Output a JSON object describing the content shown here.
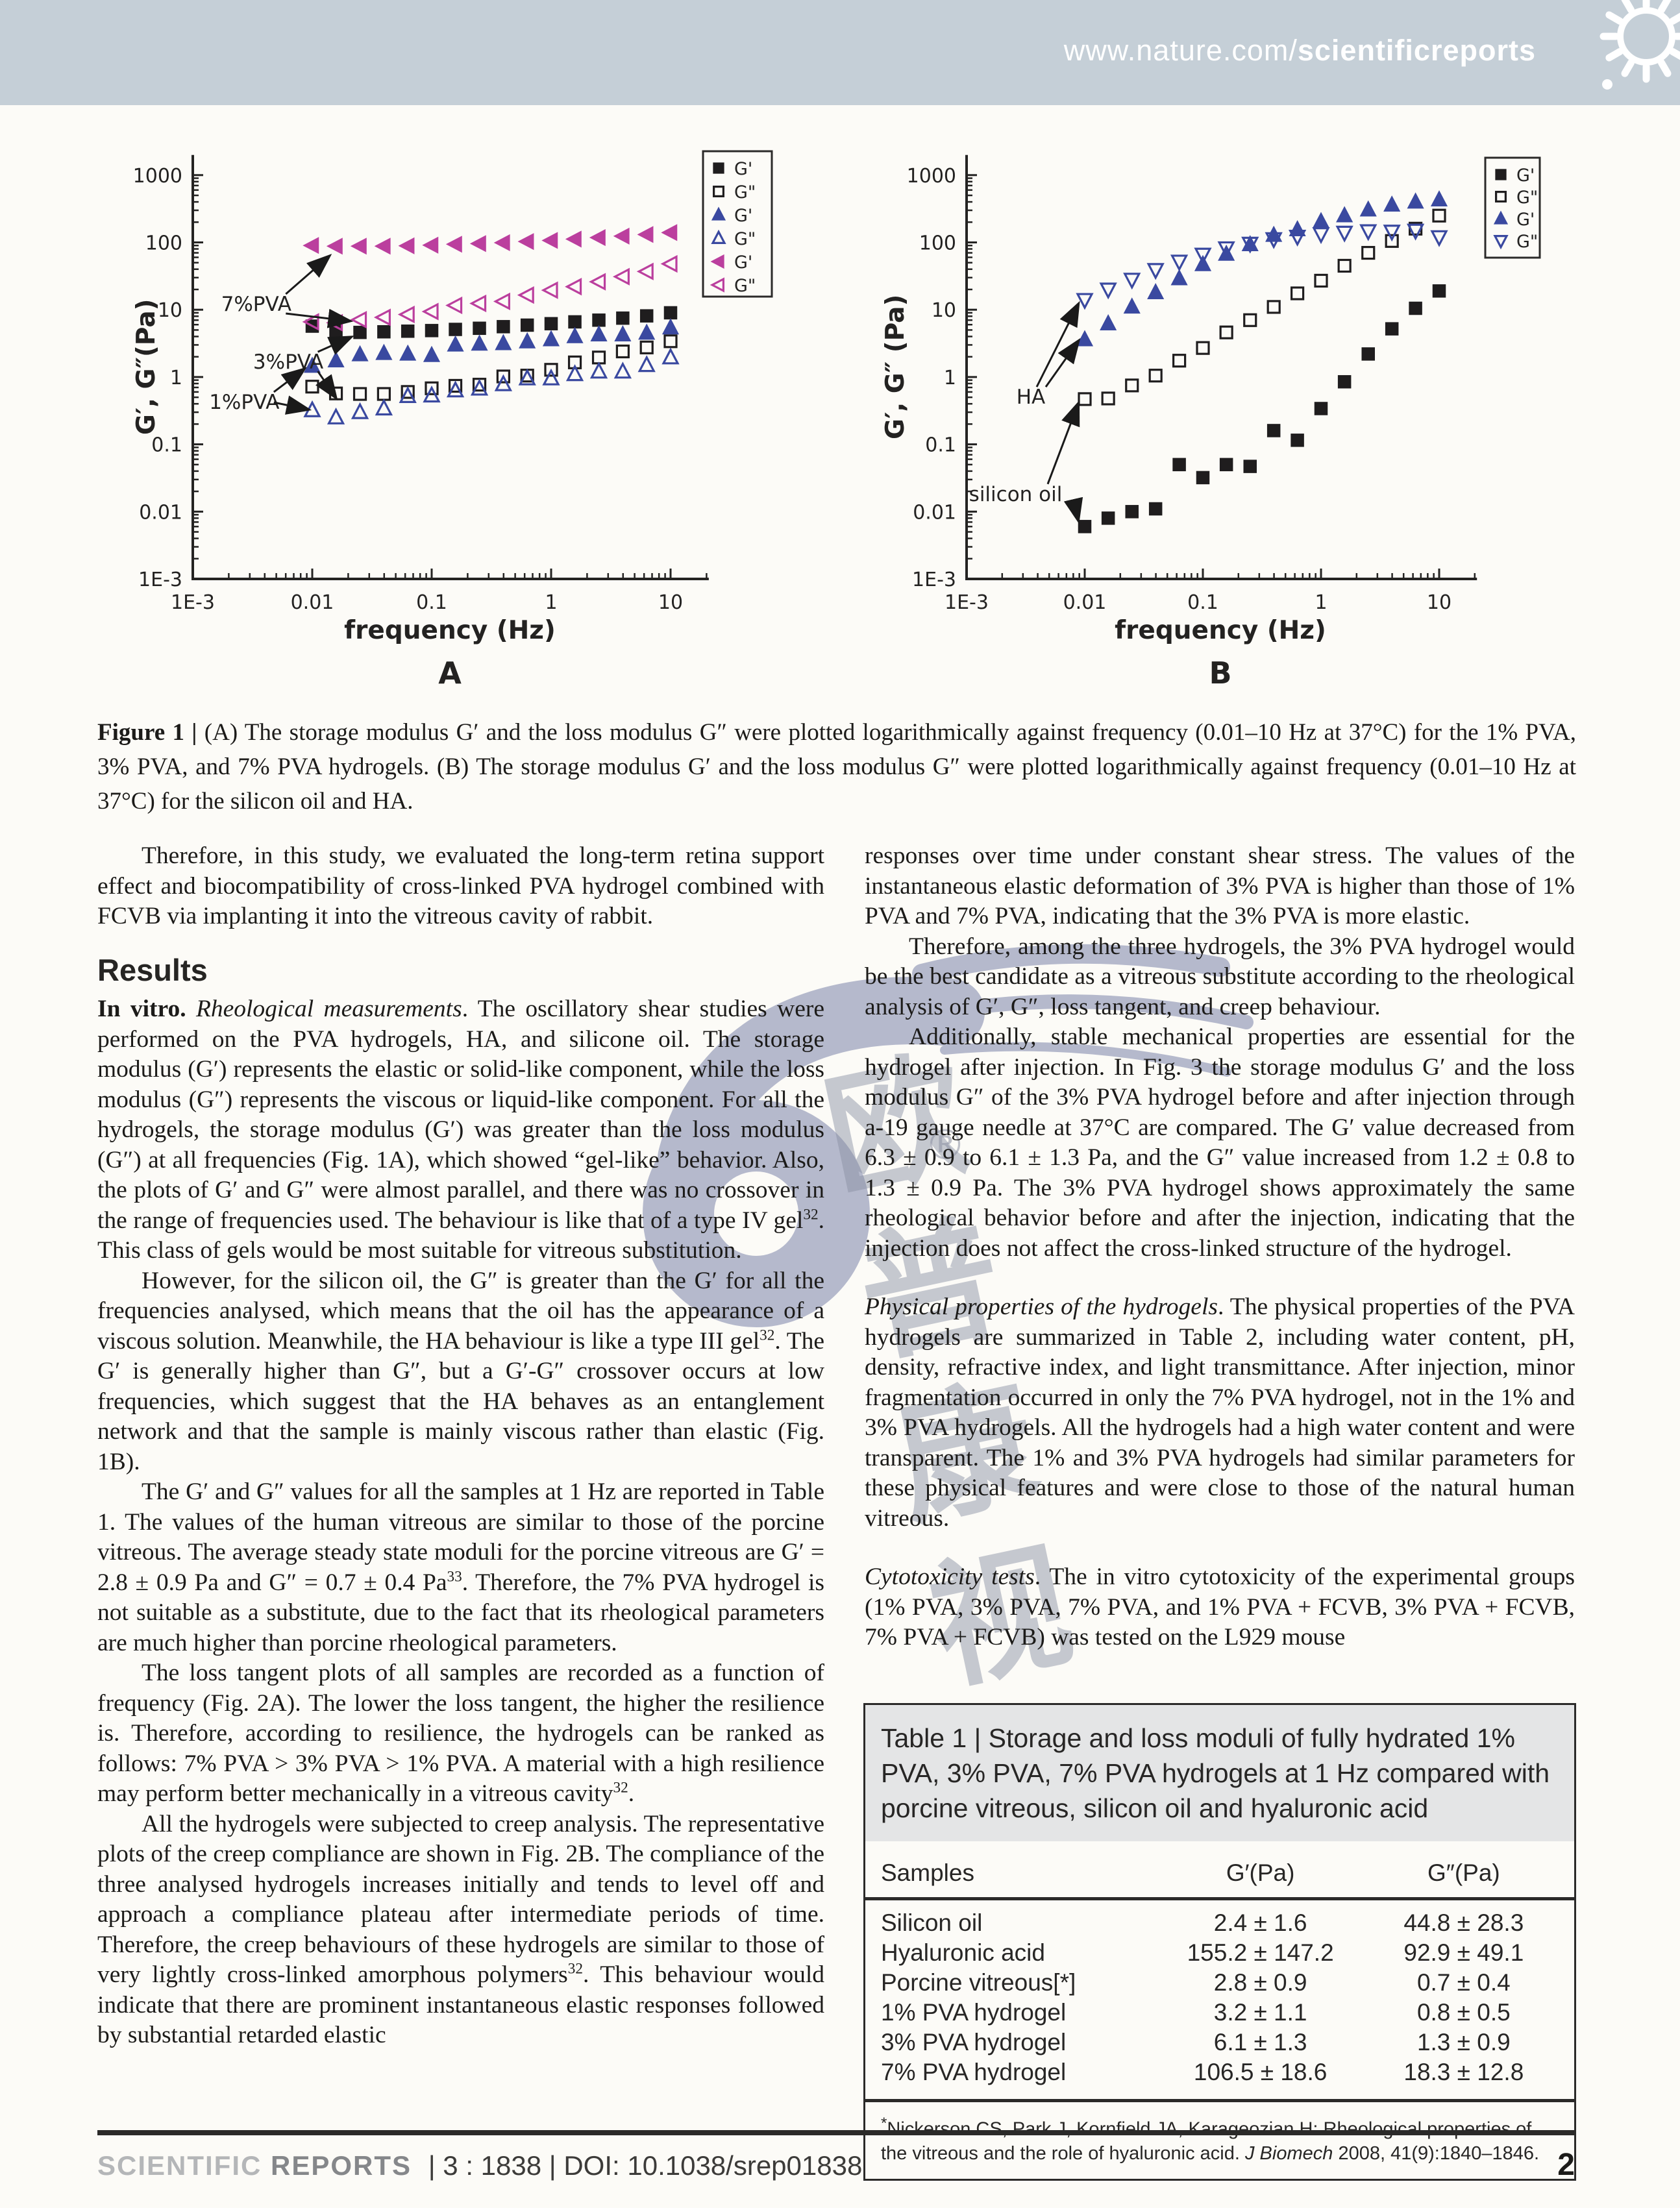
{
  "header": {
    "url_prefix": "www.nature.com/",
    "url_bold": "scientificreports",
    "banner_color": "#c5cfd7"
  },
  "figure": {
    "caption_lead": "Figure 1 |",
    "caption_text": " (A) The storage modulus G′ and the loss modulus G″ were plotted logarithmically against frequency (0.01–10 Hz at 37°C) for the 1% PVA, 3% PVA, and 7% PVA hydrogels. (B) The storage modulus G′ and the loss modulus G″ were plotted logarithmically against frequency (0.01–10 Hz at 37°C) for the silicon oil and HA."
  },
  "chart_data": [
    {
      "type": "scatter",
      "panel_label": "A",
      "xlabel": "frequency (Hz)",
      "ylabel": "G′, G″(Pa)",
      "x_scale": "log",
      "y_scale": "log",
      "xtick_labels": [
        "1E-3",
        "0.01",
        "0.1",
        "1",
        "10"
      ],
      "ytick_labels": [
        "1E-3",
        "0.01",
        "0.1",
        "1",
        "10",
        "100",
        "1000"
      ],
      "xlim": [
        0.001,
        20
      ],
      "ylim": [
        0.001,
        2000
      ],
      "legend_position": "top-right",
      "legend": [
        {
          "label": "G'",
          "marker": "square",
          "filled": true,
          "color": "#1f1d1e"
        },
        {
          "label": "G\"",
          "marker": "square",
          "filled": false,
          "color": "#1f1d1e"
        },
        {
          "label": "G'",
          "marker": "triangle-up",
          "filled": true,
          "color": "#3a49a0"
        },
        {
          "label": "G\"",
          "marker": "triangle-up",
          "filled": false,
          "color": "#3a49a0"
        },
        {
          "label": "G'",
          "marker": "triangle-left",
          "filled": true,
          "color": "#bb3f9e"
        },
        {
          "label": "G\"",
          "marker": "triangle-left",
          "filled": false,
          "color": "#bb3f9e"
        }
      ],
      "x": [
        0.01,
        0.0158,
        0.0251,
        0.0398,
        0.0631,
        0.1,
        0.158,
        0.251,
        0.398,
        0.631,
        1,
        1.58,
        2.51,
        3.98,
        6.31,
        10
      ],
      "series": [
        {
          "name": "3% PVA G′",
          "marker": "square",
          "filled": true,
          "color": "#1f1d1e",
          "y": [
            5.7,
            4.9,
            4.6,
            4.7,
            4.8,
            4.9,
            5.1,
            5.3,
            5.6,
            5.9,
            6.2,
            6.6,
            7.0,
            7.5,
            8.1,
            9.0
          ]
        },
        {
          "name": "3% PVA G″",
          "marker": "square",
          "filled": false,
          "color": "#1f1d1e",
          "y": [
            0.72,
            0.57,
            0.56,
            0.56,
            0.6,
            0.68,
            0.74,
            0.77,
            1.02,
            1.05,
            1.28,
            1.65,
            1.95,
            2.4,
            2.75,
            3.4
          ]
        },
        {
          "name": "1% PVA G′",
          "marker": "triangle-up",
          "filled": true,
          "color": "#3a49a0",
          "y": [
            1.45,
            1.75,
            2.15,
            2.25,
            2.2,
            2.1,
            3.0,
            3.1,
            3.15,
            3.35,
            3.6,
            4.0,
            4.25,
            4.25,
            4.5,
            5.4
          ]
        },
        {
          "name": "1% PVA G″",
          "marker": "triangle-up",
          "filled": false,
          "color": "#3a49a0",
          "y": [
            0.32,
            0.25,
            0.3,
            0.34,
            0.52,
            0.53,
            0.63,
            0.67,
            0.78,
            0.95,
            0.95,
            1.1,
            1.2,
            1.2,
            1.5,
            1.95
          ]
        },
        {
          "name": "7% PVA G′",
          "marker": "triangle-left",
          "filled": true,
          "color": "#bb3f9e",
          "y": [
            90,
            88,
            88,
            88,
            89,
            91,
            94,
            96,
            99,
            103,
            107,
            112,
            118,
            124,
            131,
            140
          ]
        },
        {
          "name": "7% PVA G″",
          "marker": "triangle-left",
          "filled": false,
          "color": "#bb3f9e",
          "y": [
            6.6,
            6.4,
            7.1,
            7.7,
            8.5,
            9.4,
            11.6,
            12.4,
            13.3,
            16.5,
            19.5,
            22,
            26,
            31,
            37,
            48
          ]
        }
      ],
      "annotations": [
        {
          "text": "7%PVA",
          "x": 0.0034,
          "y": 12,
          "targets": [
            [
              0.0138,
              62
            ],
            [
              0.0205,
              6.8
            ]
          ]
        },
        {
          "text": "3%PVA",
          "x": 0.0063,
          "y": 1.66,
          "targets": [
            [
              0.021,
              3.9
            ],
            [
              0.0157,
              0.5
            ]
          ]
        },
        {
          "text": "1%PVA",
          "x": 0.0027,
          "y": 0.42,
          "targets": [
            [
              0.0085,
              1.3
            ],
            [
              0.0092,
              0.33
            ]
          ]
        }
      ]
    },
    {
      "type": "scatter",
      "panel_label": "B",
      "xlabel": "frequency (Hz)",
      "ylabel": "G′, G″ (Pa)",
      "x_scale": "log",
      "y_scale": "log",
      "xtick_labels": [
        "1E-3",
        "0.01",
        "0.1",
        "1",
        "10"
      ],
      "ytick_labels": [
        "1E-3",
        "0.01",
        "0.1",
        "1",
        "10",
        "100",
        "1000"
      ],
      "xlim": [
        0.001,
        20
      ],
      "ylim": [
        0.001,
        2000
      ],
      "legend_position": "top-right",
      "legend": [
        {
          "label": "G'",
          "marker": "square",
          "filled": true,
          "color": "#1f1d1e"
        },
        {
          "label": "G\"",
          "marker": "square",
          "filled": false,
          "color": "#1f1d1e"
        },
        {
          "label": "G'",
          "marker": "triangle-up",
          "filled": true,
          "color": "#3a49a0"
        },
        {
          "label": "G\"",
          "marker": "triangle-down",
          "filled": false,
          "color": "#3a49a0"
        }
      ],
      "x": [
        0.01,
        0.0158,
        0.0251,
        0.0398,
        0.0631,
        0.1,
        0.158,
        0.251,
        0.398,
        0.631,
        1,
        1.58,
        2.51,
        3.98,
        6.31,
        10
      ],
      "series": [
        {
          "name": "silicon oil G′",
          "marker": "square",
          "filled": true,
          "color": "#1f1d1e",
          "y": [
            0.006,
            0.008,
            0.01,
            0.011,
            0.05,
            0.032,
            0.05,
            0.047,
            0.16,
            0.115,
            0.34,
            0.85,
            2.2,
            5.2,
            10.5,
            19
          ]
        },
        {
          "name": "silicon oil G″",
          "marker": "square",
          "filled": false,
          "color": "#1f1d1e",
          "y": [
            0.47,
            0.48,
            0.75,
            1.05,
            1.75,
            2.7,
            4.6,
            7.0,
            11,
            17.5,
            27,
            45,
            70,
            105,
            160,
            250
          ]
        },
        {
          "name": "HA G′",
          "marker": "triangle-up",
          "filled": true,
          "color": "#3a49a0",
          "y": [
            3.6,
            6.2,
            11,
            18,
            29,
            47,
            67,
            93,
            128,
            155,
            205,
            250,
            305,
            360,
            400,
            430
          ]
        },
        {
          "name": "HA G″",
          "marker": "triangle-down",
          "filled": false,
          "color": "#3a49a0",
          "y": [
            14,
            20,
            28,
            39,
            52,
            66,
            82,
            96,
            112,
            122,
            133,
            140,
            147,
            145,
            150,
            120
          ]
        }
      ],
      "annotations": [
        {
          "text": "HA",
          "x": 0.0035,
          "y": 0.5,
          "targets": [
            [
              0.0088,
              12
            ],
            [
              0.0088,
              3.4
            ]
          ]
        },
        {
          "text": "silicon oil",
          "x": 0.0026,
          "y": 0.018,
          "targets": [
            [
              0.0088,
              0.4
            ],
            [
              0.0088,
              0.0075
            ]
          ]
        }
      ]
    }
  ],
  "columns": {
    "left": [
      {
        "type": "p",
        "indent": true,
        "runs": [
          {
            "t": "Therefore, in this study, we evaluated the long-term retina support effect and biocompatibility of cross-linked PVA hydrogel combined with FCVB via implanting it into the vitreous cavity of rabbit.",
            "s": "n"
          }
        ]
      },
      {
        "type": "h",
        "text": "Results"
      },
      {
        "type": "p",
        "indent": false,
        "runs": [
          {
            "t": "In vitro. ",
            "s": "b"
          },
          {
            "t": "Rheological measurements",
            "s": "i"
          },
          {
            "t": ". The oscillatory shear studies were performed on the PVA hydrogels, HA, and silicone oil. The storage modulus (G′) represents the elastic or solid-like component, while the loss modulus (G″) represents the viscous or liquid-like component. For all the hydrogels, the storage modulus (G′) was greater than the loss modulus (G″) at all frequencies (Fig. 1A), which showed “gel-like” behavior. Also, the plots of G′ and G″ were almost parallel, and there was no crossover in the range of frequencies used. The behaviour is like that of a type IV gel",
            "s": "n"
          },
          {
            "t": "32",
            "s": "sup"
          },
          {
            "t": ". This class of gels would be most suitable for vitreous substitution.",
            "s": "n"
          }
        ]
      },
      {
        "type": "p",
        "indent": true,
        "runs": [
          {
            "t": "However, for the silicon oil, the G″ is greater than the G′ for all the frequencies analysed, which means that the oil has the appearance of a viscous solution. Meanwhile, the HA behaviour is like a type III gel",
            "s": "n"
          },
          {
            "t": "32",
            "s": "sup"
          },
          {
            "t": ". The G′ is generally higher than G″, but a G′-G″ crossover occurs at low frequencies, which suggest that the HA behaves as an entanglement network and that the sample is mainly viscous rather than elastic (Fig. 1B).",
            "s": "n"
          }
        ]
      },
      {
        "type": "p",
        "indent": true,
        "runs": [
          {
            "t": "The G′ and G″ values for all the samples at 1 Hz are reported in Table 1. The values of the human vitreous are similar to those of the porcine vitreous. The average steady state moduli for the porcine vitreous are G′ = 2.8 ± 0.9 Pa and G″ = 0.7 ± 0.4 Pa",
            "s": "n"
          },
          {
            "t": "33",
            "s": "sup"
          },
          {
            "t": ". Therefore, the 7% PVA hydrogel is not suitable as a substitute, due to the fact that its rheological parameters are much higher than porcine rheological parameters.",
            "s": "n"
          }
        ]
      },
      {
        "type": "p",
        "indent": true,
        "runs": [
          {
            "t": "The loss tangent plots of all samples are recorded as a function of frequency (Fig. 2A). The lower the loss tangent, the higher the resilience is. Therefore, according to resilience, the hydrogels can be ranked as follows: 7% PVA > 3% PVA > 1% PVA. A material with a high resilience may perform better mechanically in a vitreous cavity",
            "s": "n"
          },
          {
            "t": "32",
            "s": "sup"
          },
          {
            "t": ".",
            "s": "n"
          }
        ]
      },
      {
        "type": "p",
        "indent": true,
        "runs": [
          {
            "t": "All the hydrogels were subjected to creep analysis. The representative plots of the creep compliance are shown in Fig. 2B. The compliance of the three analysed hydrogels increases initially and tends to level off and approach a compliance plateau after intermediate periods of time. Therefore, the creep behaviours of these hydrogels are similar to those of very lightly cross-linked amorphous polymers",
            "s": "n"
          },
          {
            "t": "32",
            "s": "sup"
          },
          {
            "t": ". This behaviour would indicate that there are prominent instantaneous elastic responses followed by substantial retarded elastic",
            "s": "n"
          }
        ]
      }
    ],
    "right": [
      {
        "type": "p",
        "indent": false,
        "runs": [
          {
            "t": "responses over time under constant shear stress. The values of the instantaneous elastic deformation of 3% PVA is higher than those of 1% PVA and 7% PVA, indicating that the 3% PVA is more elastic.",
            "s": "n"
          }
        ]
      },
      {
        "type": "p",
        "indent": true,
        "runs": [
          {
            "t": "Therefore, among the three hydrogels, the 3% PVA hydrogel would be the best candidate as a vitreous substitute according to the rheological analysis of G′, G″, loss tangent, and creep behaviour.",
            "s": "n"
          }
        ]
      },
      {
        "type": "p",
        "indent": true,
        "runs": [
          {
            "t": "Additionally, stable mechanical properties are essential for the hydrogel after injection. In Fig. 3 the storage modulus G′ and the loss modulus G″ of the 3% PVA hydrogel before and after injection through a-19 gauge needle at 37°C are compared. The G′ value decreased from 6.3 ± 0.9 to 6.1 ± 1.3 Pa, and the G″ value increased from 1.2 ± 0.8 to 1.3 ± 0.9 Pa. The 3% PVA hydrogel shows approximately the same rheological behavior before and after the injection, indicating that the injection does not affect the cross-linked structure of the hydrogel.",
            "s": "n"
          }
        ]
      },
      {
        "type": "p",
        "indent": false,
        "gap": true,
        "runs": [
          {
            "t": "Physical properties of the hydrogels",
            "s": "i"
          },
          {
            "t": ". The physical properties of the PVA hydrogels are summarized in Table 2, including water content, pH, density, refractive index, and light transmittance. After injection, minor fragmentation occurred in only the 7% PVA hydrogel, not in the 1% and 3% PVA hydrogels. All the hydrogels had a high water content and were transparent. The 1% and 3% PVA hydrogels had similar parameters for these physical features and were close to those of the natural human vitreous.",
            "s": "n"
          }
        ]
      },
      {
        "type": "p",
        "indent": false,
        "gap": true,
        "runs": [
          {
            "t": "Cytotoxicity tests",
            "s": "i"
          },
          {
            "t": ". The in vitro cytotoxicity of the experimental groups (1% PVA, 3% PVA, 7% PVA, and 1% PVA + FCVB, 3% PVA + FCVB, 7% PVA + FCVB) was tested on the L929 mouse",
            "s": "n"
          }
        ]
      }
    ]
  },
  "table": {
    "title": "Table 1 | Storage and loss moduli of fully hydrated 1% PVA, 3% PVA, 7% PVA hydrogels at 1 Hz compared with porcine vitreous, silicon oil and hyaluronic acid",
    "columns": [
      "Samples",
      "G′(Pa)",
      "G″(Pa)"
    ],
    "rows": [
      [
        "Silicon oil",
        "2.4 ± 1.6",
        "44.8 ± 28.3"
      ],
      [
        "Hyaluronic acid",
        "155.2 ± 147.2",
        "92.9 ± 49.1"
      ],
      [
        "Porcine vitreous[*]",
        "2.8 ± 0.9",
        "0.7 ± 0.4"
      ],
      [
        "1% PVA hydrogel",
        "3.2 ± 1.1",
        "0.8 ± 0.5"
      ],
      [
        "3% PVA hydrogel",
        "6.1 ± 1.3",
        "1.3 ± 0.9"
      ],
      [
        "7% PVA hydrogel",
        "106.5 ± 18.6",
        "18.3 ± 12.8"
      ]
    ],
    "footnote_marker": "*",
    "footnote_runs": [
      {
        "t": "Nickerson CS, Park J, Kornfield JA, Karageozian H: Rheological properties of the vitreous and the role of hyaluronic acid. ",
        "s": "n"
      },
      {
        "t": "J Biomech",
        "s": "i"
      },
      {
        "t": " 2008, 41(9):1840–1846.",
        "s": "n"
      }
    ]
  },
  "footer": {
    "journal_light": "SCIENTIFIC",
    "journal_bold": " REPORTS",
    "meta": "  |  3 : 1838  |  DOI: 10.1038/srep01838",
    "page_number": "2"
  },
  "watermark": {
    "line1": "欧普",
    "line2": "康视",
    "registered": "®",
    "color": "#b5b9cc"
  }
}
